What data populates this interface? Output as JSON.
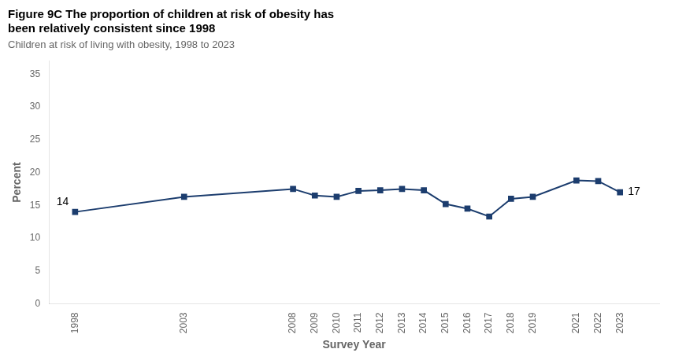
{
  "chart_data": {
    "type": "line",
    "title": "Figure 9C The proportion of children at risk of obesity has\nbeen relatively consistent since 1998",
    "subtitle": "Children at risk of living with obesity, 1998 to 2023",
    "xlabel": "Survey Year",
    "ylabel": "Percent",
    "x": [
      1998,
      2003,
      2008,
      2009,
      2010,
      2011,
      2012,
      2013,
      2014,
      2015,
      2016,
      2017,
      2018,
      2019,
      2021,
      2022,
      2023
    ],
    "values": [
      14.0,
      16.3,
      17.5,
      16.5,
      16.3,
      17.2,
      17.3,
      17.5,
      17.3,
      15.2,
      14.5,
      13.3,
      16.0,
      16.3,
      18.8,
      18.7,
      17.0
    ],
    "color": "#1c3d6e",
    "marker": "square",
    "xlim": [
      1996.8,
      2024.8
    ],
    "xticks": [
      1998,
      2003,
      2008,
      2009,
      2010,
      2011,
      2012,
      2013,
      2014,
      2015,
      2016,
      2017,
      2018,
      2019,
      2021,
      2022,
      2023
    ],
    "ylim": [
      0,
      37
    ],
    "yticks": [
      0,
      5,
      10,
      15,
      20,
      25,
      30,
      35
    ],
    "grid": false,
    "annotations": [
      {
        "x": 1998,
        "y": 14.0,
        "label": "14"
      },
      {
        "x": 2023,
        "y": 17.0,
        "label": "17"
      }
    ]
  }
}
